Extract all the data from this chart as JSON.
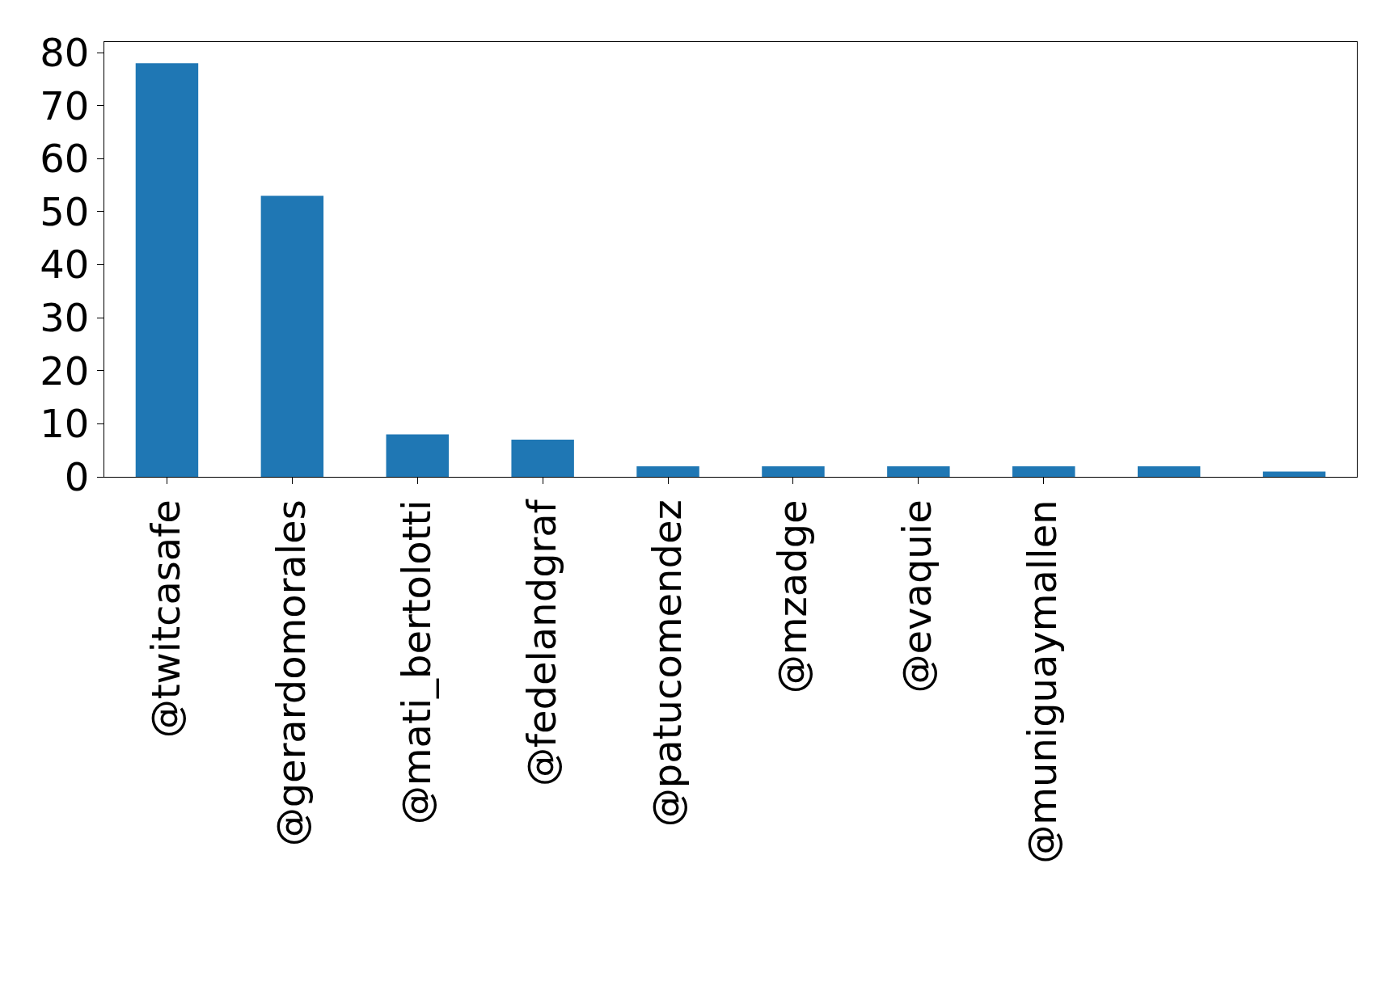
{
  "chart_data": {
    "type": "bar",
    "categories": [
      "@twitcasafe",
      "@gerardomorales",
      "@mati_bertolotti",
      "@fedelandgraf",
      "@patucomendez",
      "@mzadge",
      "@evaquie",
      "@muniguaymallen",
      null,
      null
    ],
    "values": [
      78,
      53,
      8,
      7,
      2,
      2,
      2,
      2,
      2,
      1
    ],
    "color": "#1f77b4",
    "ylim": [
      0,
      82
    ],
    "yticks": [
      0,
      10,
      20,
      30,
      40,
      50,
      60,
      70,
      80
    ],
    "grid": false
  }
}
